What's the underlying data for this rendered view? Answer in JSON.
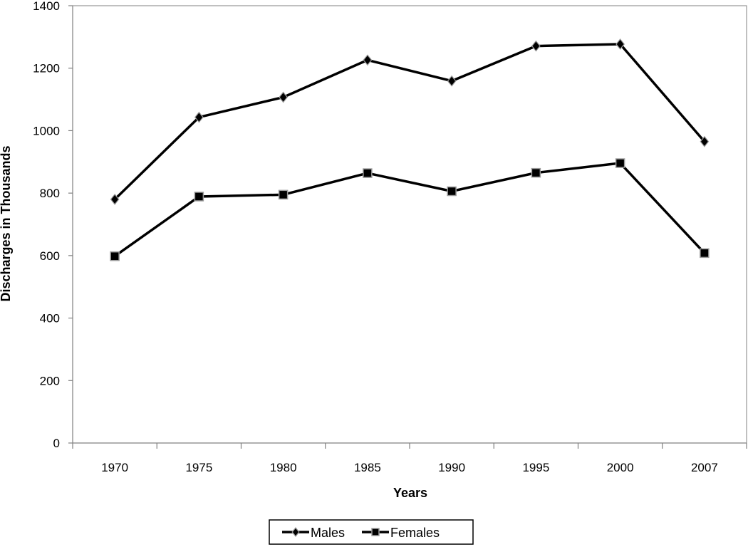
{
  "chart_data": {
    "type": "line",
    "title": "",
    "xlabel": "Years",
    "ylabel": "Discharges in Thousands",
    "categories": [
      "1970",
      "1975",
      "1980",
      "1985",
      "1990",
      "1995",
      "2000",
      "2007"
    ],
    "ylim": [
      0,
      1400
    ],
    "yticks": [
      0,
      200,
      400,
      600,
      800,
      1000,
      1200,
      1400
    ],
    "grid": false,
    "legend_position": "bottom",
    "series": [
      {
        "name": "Males",
        "marker": "diamond",
        "color": "#000000",
        "values": [
          780,
          1043,
          1107,
          1226,
          1159,
          1271,
          1277,
          965
        ]
      },
      {
        "name": "Females",
        "marker": "square",
        "color": "#000000",
        "values": [
          598,
          789,
          795,
          864,
          806,
          865,
          896,
          608
        ]
      }
    ]
  }
}
